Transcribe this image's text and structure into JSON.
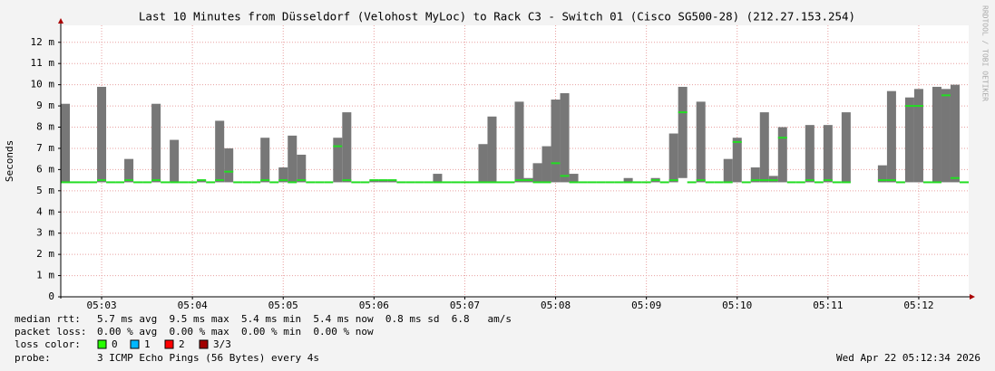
{
  "chart_data": {
    "type": "smokeping",
    "title": "Last 10 Minutes from Düsseldorf (Velohost MyLoc) to Rack C3 - Switch 01 (Cisco SG500-28) (212.27.153.254)",
    "y_label": "Seconds",
    "watermark": "RRDTOOL / TOBI OETIKER",
    "categories": [
      null,
      null,
      null,
      null,
      "05:03",
      null,
      null,
      null,
      null,
      null,
      null,
      null,
      null,
      null,
      "05:04",
      null,
      null,
      null,
      null,
      null,
      null,
      null,
      null,
      null,
      "05:05",
      null,
      null,
      null,
      null,
      null,
      null,
      null,
      null,
      null,
      "05:06",
      null,
      null,
      null,
      null,
      null,
      null,
      null,
      null,
      null,
      "05:07",
      null,
      null,
      null,
      null,
      null,
      null,
      null,
      null,
      null,
      "05:08",
      null,
      null,
      null,
      null,
      null,
      null,
      null,
      null,
      null,
      "05:09",
      null,
      null,
      null,
      null,
      null,
      null,
      null,
      null,
      null,
      "05:10",
      null,
      null,
      null,
      null,
      null,
      null,
      null,
      null,
      null,
      "05:11",
      null,
      null,
      null,
      null,
      null,
      null,
      null,
      null,
      null,
      "05:12",
      null,
      null,
      null,
      null,
      null
    ],
    "median": [
      0.0054,
      0.0054,
      0.0054,
      0.0054,
      0.0055,
      0.0054,
      0.0054,
      0.0055,
      0.0054,
      0.0054,
      0.0055,
      0.0054,
      0.0054,
      0.0054,
      0.0054,
      0.0055,
      0.0054,
      0.0055,
      0.0059,
      0.0054,
      0.0054,
      0.0054,
      0.0055,
      0.0054,
      0.0055,
      0.0054,
      0.0055,
      0.0054,
      0.0054,
      0.0054,
      0.0071,
      0.0055,
      0.0054,
      0.0054,
      0.0055,
      0.0055,
      0.0055,
      0.0054,
      0.0054,
      0.0054,
      0.0054,
      0.0054,
      0.0054,
      0.0054,
      0.0054,
      0.0054,
      0.0054,
      0.0054,
      0.0054,
      0.0054,
      0.0055,
      0.0055,
      0.0054,
      0.0054,
      0.0063,
      0.0057,
      0.0054,
      0.0054,
      0.0054,
      0.0054,
      0.0054,
      0.0054,
      0.0054,
      0.0054,
      0.0054,
      0.0055,
      0.0054,
      0.0055,
      0.0087,
      0.0054,
      0.0055,
      0.0054,
      0.0054,
      0.0054,
      0.0073,
      0.0054,
      0.0055,
      0.0055,
      0.0055,
      0.0075,
      0.0054,
      0.0054,
      0.0055,
      0.0054,
      0.0055,
      0.0054,
      0.0054,
      null,
      null,
      null,
      0.0055,
      0.0055,
      0.0054,
      0.009,
      0.009,
      0.0054,
      0.0054,
      0.0095,
      0.0056,
      0.0054
    ],
    "smoke_min": [
      0.0054,
      0.0054,
      0.0054,
      0.0054,
      0.0054,
      0.0054,
      0.0054,
      0.0054,
      0.0054,
      0.0054,
      0.0054,
      0.0054,
      0.0054,
      0.0054,
      0.0054,
      0.0054,
      0.0054,
      0.0054,
      0.0054,
      0.0054,
      0.0054,
      0.0054,
      0.0054,
      0.0054,
      0.0054,
      0.0054,
      0.0054,
      0.0054,
      0.0054,
      0.0054,
      0.0054,
      0.0054,
      0.0054,
      0.0054,
      0.0054,
      0.0054,
      0.0054,
      0.0054,
      0.0054,
      0.0054,
      0.0054,
      0.0054,
      0.0054,
      0.0054,
      0.0054,
      0.0054,
      0.0054,
      0.0054,
      0.0054,
      0.0054,
      0.0054,
      0.0054,
      0.0054,
      0.0054,
      0.0054,
      0.0054,
      0.0054,
      0.0054,
      0.0054,
      0.0054,
      0.0054,
      0.0054,
      0.0054,
      0.0054,
      0.0054,
      0.0054,
      0.0054,
      0.0054,
      0.0056,
      0.0054,
      0.0054,
      0.0054,
      0.0054,
      0.0054,
      0.0054,
      0.0054,
      0.0054,
      0.0054,
      0.0054,
      0.0054,
      0.0054,
      0.0054,
      0.0054,
      0.0054,
      0.0054,
      0.0054,
      0.0054,
      null,
      null,
      null,
      0.0054,
      0.0054,
      0.0054,
      0.0054,
      0.0054,
      0.0054,
      0.0054,
      0.0054,
      0.0054,
      0.0054
    ],
    "smoke_max": [
      0.0091,
      0.0054,
      0.0054,
      0.0054,
      0.0099,
      0.0054,
      0.0054,
      0.0065,
      0.0054,
      0.0054,
      0.0091,
      0.0054,
      0.0074,
      0.0054,
      0.0054,
      0.0055,
      0.0054,
      0.0083,
      0.007,
      0.0054,
      0.0054,
      0.0054,
      0.0075,
      0.0054,
      0.0061,
      0.0076,
      0.0067,
      0.0054,
      0.0054,
      0.0054,
      0.0075,
      0.0087,
      0.0054,
      0.0054,
      0.0055,
      0.0055,
      0.0055,
      0.0054,
      0.0054,
      0.0054,
      0.0054,
      0.0058,
      0.0054,
      0.0054,
      0.0054,
      0.0054,
      0.0072,
      0.0085,
      0.0054,
      0.0054,
      0.0092,
      0.0056,
      0.0063,
      0.0071,
      0.0093,
      0.0096,
      0.0058,
      0.0054,
      0.0054,
      0.0054,
      0.0054,
      0.0054,
      0.0056,
      0.0054,
      0.0054,
      0.0056,
      0.0054,
      0.0077,
      0.0099,
      0.0054,
      0.0092,
      0.0054,
      0.0054,
      0.0065,
      0.0075,
      0.0054,
      0.0061,
      0.0087,
      0.0057,
      0.008,
      0.0054,
      0.0054,
      0.0081,
      0.0054,
      0.0081,
      0.0054,
      0.0087,
      null,
      null,
      null,
      0.0062,
      0.0097,
      0.0054,
      0.0094,
      0.0098,
      0.0054,
      0.0099,
      0.0098,
      0.01,
      0.0054
    ],
    "median_color": "#22dd22",
    "smoke_color": "#777777",
    "ylim": [
      0,
      0.0128
    ],
    "yticks": [
      0,
      {
        "value": 0.001,
        "label": "1 m"
      },
      {
        "value": 0.002,
        "label": "2 m"
      },
      {
        "value": 0.003,
        "label": "3 m"
      },
      {
        "value": 0.004,
        "label": "4 m"
      },
      {
        "value": 0.005,
        "label": "5 m"
      },
      {
        "value": 0.006,
        "label": "6 m"
      },
      {
        "value": 0.007,
        "label": "7 m"
      },
      {
        "value": 0.008,
        "label": "8 m"
      },
      {
        "value": 0.009,
        "label": "9 m"
      },
      {
        "value": 0.01,
        "label": "10 m"
      },
      {
        "value": 0.011,
        "label": "11 m"
      },
      {
        "value": 0.012,
        "label": "12 m"
      }
    ],
    "grid": true,
    "stats": [
      {
        "label": "median rtt:",
        "text": "5.7 ms avg  9.5 ms max  5.4 ms min  5.4 ms now  0.8 ms sd  6.8   am/s"
      },
      {
        "label": "packet loss:",
        "text": "0.00 % avg  0.00 % max  0.00 % min  0.00 % now"
      }
    ],
    "loss_label": "loss color:",
    "loss_colors": [
      {
        "label": "0",
        "color": "#26ff00"
      },
      {
        "label": "1",
        "color": "#00b8ff"
      },
      {
        "label": "2",
        "color": "#ff0000"
      },
      {
        "label": "3/3",
        "color": "#a10000"
      }
    ],
    "probe_label": "probe:",
    "probe": "3 ICMP Echo Pings (56 Bytes) every 4s",
    "timestamp": "Wed Apr 22 05:12:34 2026"
  }
}
